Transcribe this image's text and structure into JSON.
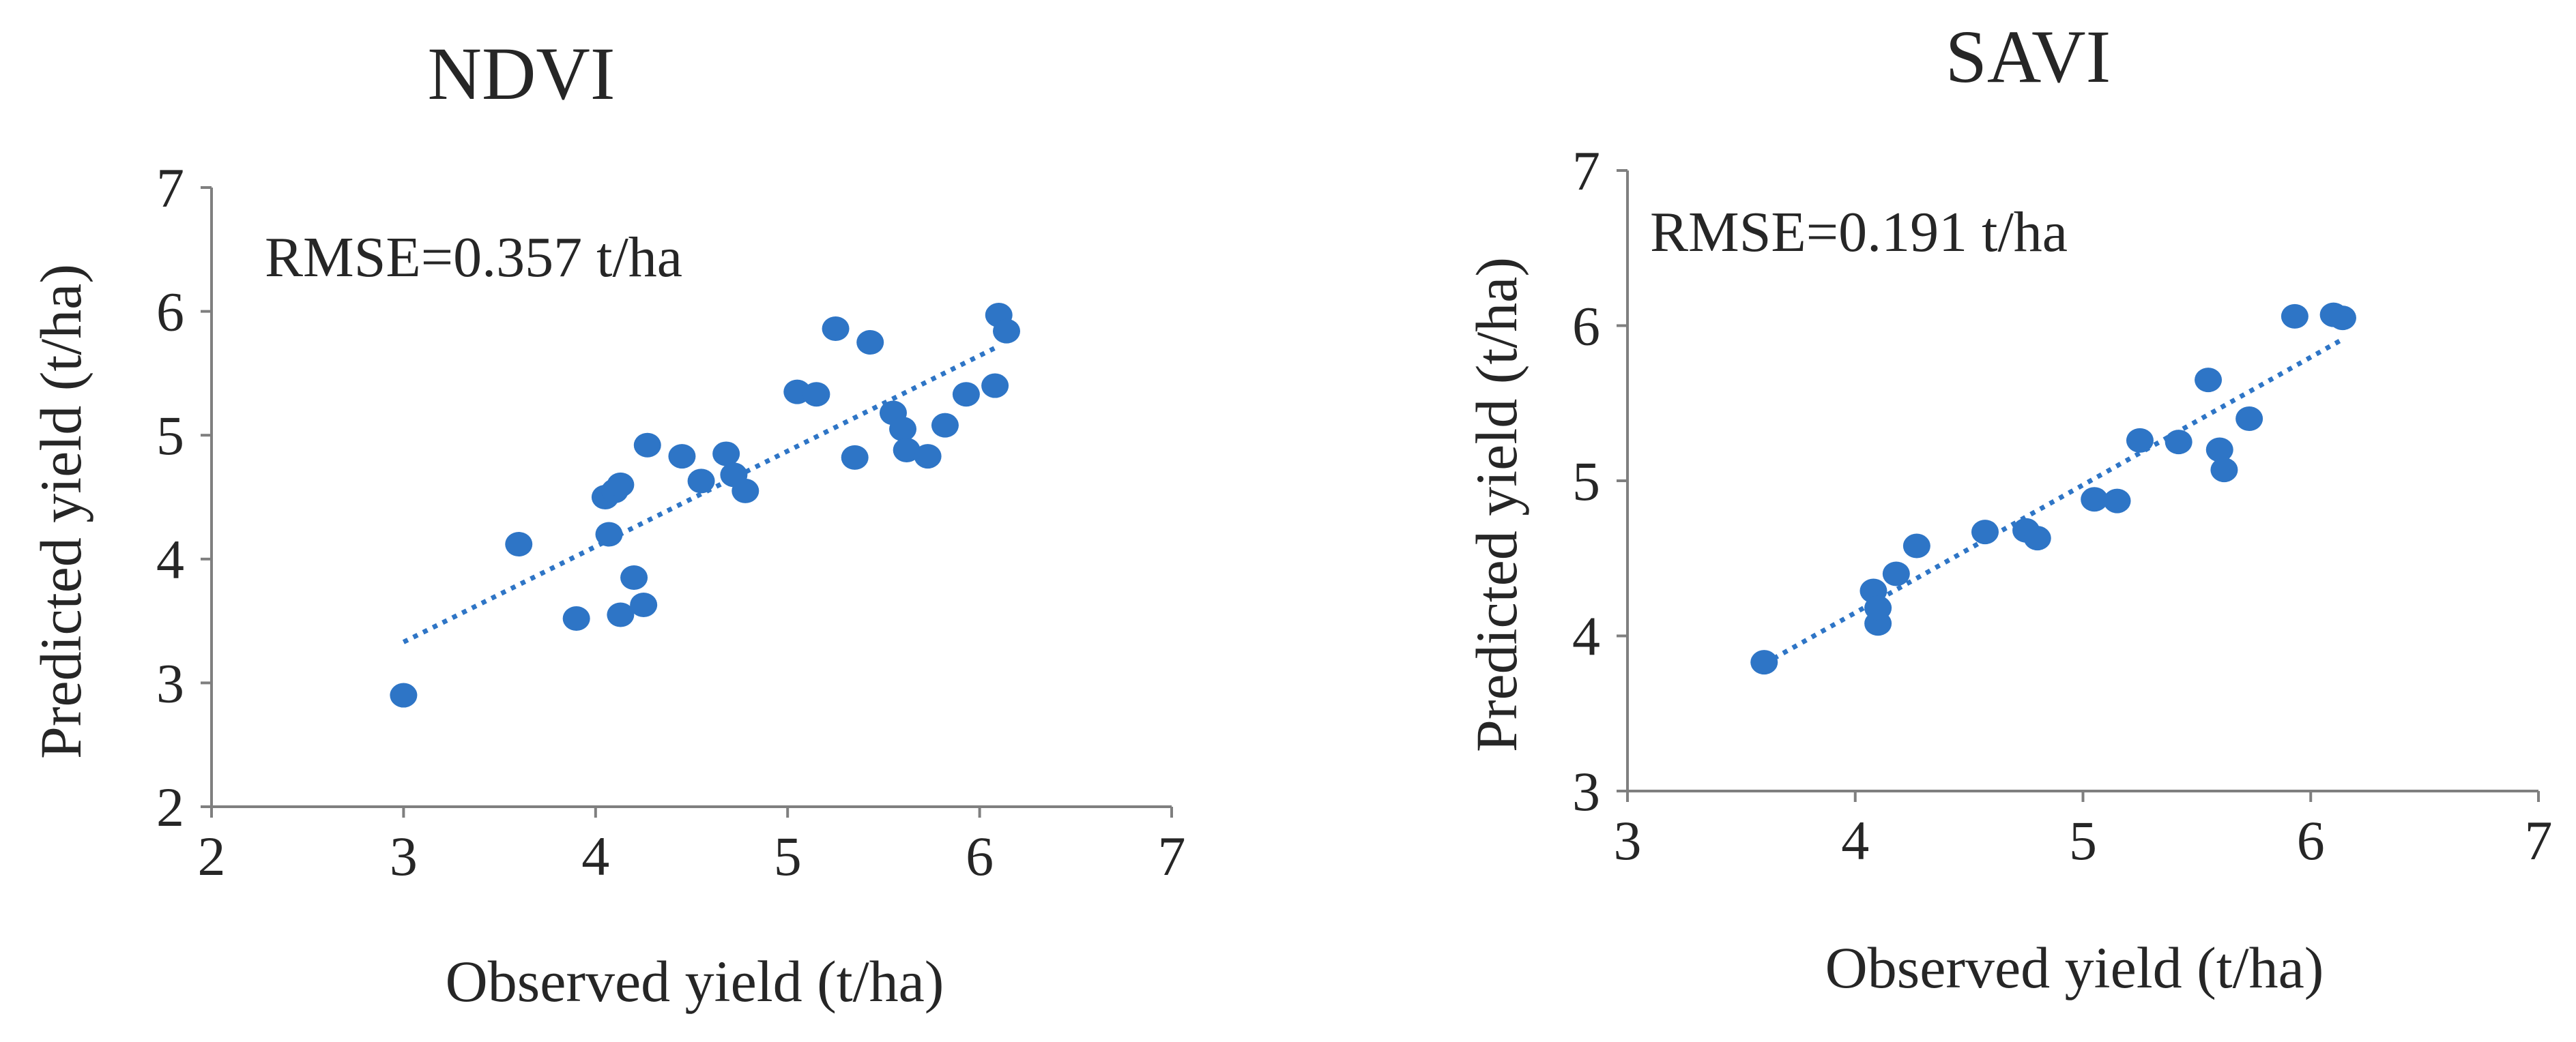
{
  "colors": {
    "marker": "#2E75C6",
    "trend": "#2E75C6",
    "axis": "#7F7F7F",
    "text": "#262626"
  },
  "chart_data": [
    {
      "type": "scatter",
      "title": "NDVI",
      "xlabel": "Observed yield (t/ha)",
      "ylabel": "Predicted yield (t/ha)",
      "annotation": "RMSE=0.357 t/ha",
      "xlim": [
        2,
        7
      ],
      "ylim": [
        2,
        7
      ],
      "xticks": [
        "2",
        "3",
        "4",
        "5",
        "6",
        "7"
      ],
      "yticks": [
        "2",
        "3",
        "4",
        "5",
        "6",
        "7"
      ],
      "trendline": {
        "style": "dotted",
        "x": [
          3.0,
          6.1
        ],
        "y": [
          3.33,
          5.72
        ]
      },
      "points": [
        {
          "x": 3.0,
          "y": 2.9
        },
        {
          "x": 3.6,
          "y": 4.12
        },
        {
          "x": 3.9,
          "y": 3.52
        },
        {
          "x": 4.05,
          "y": 4.5
        },
        {
          "x": 4.1,
          "y": 4.55
        },
        {
          "x": 4.13,
          "y": 4.6
        },
        {
          "x": 4.07,
          "y": 4.2
        },
        {
          "x": 4.13,
          "y": 3.55
        },
        {
          "x": 4.2,
          "y": 3.85
        },
        {
          "x": 4.25,
          "y": 3.63
        },
        {
          "x": 4.27,
          "y": 4.92
        },
        {
          "x": 4.45,
          "y": 4.83
        },
        {
          "x": 4.55,
          "y": 4.63
        },
        {
          "x": 4.68,
          "y": 4.85
        },
        {
          "x": 4.72,
          "y": 4.68
        },
        {
          "x": 4.78,
          "y": 4.55
        },
        {
          "x": 5.05,
          "y": 5.35
        },
        {
          "x": 5.15,
          "y": 5.33
        },
        {
          "x": 5.25,
          "y": 5.86
        },
        {
          "x": 5.35,
          "y": 4.82
        },
        {
          "x": 5.43,
          "y": 5.75
        },
        {
          "x": 5.55,
          "y": 5.18
        },
        {
          "x": 5.6,
          "y": 5.05
        },
        {
          "x": 5.62,
          "y": 4.88
        },
        {
          "x": 5.73,
          "y": 4.83
        },
        {
          "x": 5.82,
          "y": 5.08
        },
        {
          "x": 5.93,
          "y": 5.33
        },
        {
          "x": 6.08,
          "y": 5.4
        },
        {
          "x": 6.1,
          "y": 5.97
        },
        {
          "x": 6.14,
          "y": 5.84
        }
      ]
    },
    {
      "type": "scatter",
      "title": "SAVI",
      "xlabel": "Observed yield (t/ha)",
      "ylabel": "Predicted yield (t/ha)",
      "annotation": "RMSE=0.191  t/ha",
      "xlim": [
        3,
        7
      ],
      "ylim": [
        3,
        7
      ],
      "xticks": [
        "3",
        "4",
        "5",
        "6",
        "7"
      ],
      "yticks": [
        "3",
        "4",
        "5",
        "6",
        "7"
      ],
      "trendline": {
        "style": "dotted",
        "x": [
          3.6,
          6.15
        ],
        "y": [
          3.82,
          5.92
        ]
      },
      "points": [
        {
          "x": 3.6,
          "y": 3.83
        },
        {
          "x": 4.08,
          "y": 4.29
        },
        {
          "x": 4.1,
          "y": 4.08
        },
        {
          "x": 4.1,
          "y": 4.18
        },
        {
          "x": 4.18,
          "y": 4.4
        },
        {
          "x": 4.27,
          "y": 4.58
        },
        {
          "x": 4.57,
          "y": 4.67
        },
        {
          "x": 4.75,
          "y": 4.68
        },
        {
          "x": 4.8,
          "y": 4.63
        },
        {
          "x": 5.05,
          "y": 4.88
        },
        {
          "x": 5.15,
          "y": 4.87
        },
        {
          "x": 5.25,
          "y": 5.26
        },
        {
          "x": 5.42,
          "y": 5.25
        },
        {
          "x": 5.55,
          "y": 5.65
        },
        {
          "x": 5.6,
          "y": 5.2
        },
        {
          "x": 5.62,
          "y": 5.07
        },
        {
          "x": 5.73,
          "y": 5.4
        },
        {
          "x": 5.93,
          "y": 6.06
        },
        {
          "x": 6.1,
          "y": 6.07
        },
        {
          "x": 6.14,
          "y": 6.05
        }
      ]
    }
  ]
}
